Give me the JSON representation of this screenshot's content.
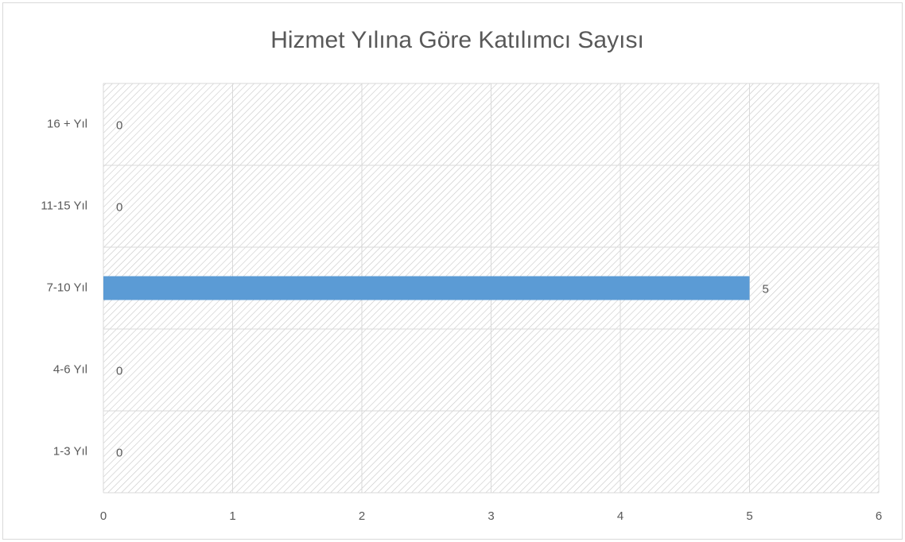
{
  "chart_data": {
    "type": "bar",
    "orientation": "horizontal",
    "title": "Hizmet Yılına Göre Katılımcı Sayısı",
    "categories": [
      "1-3 Yıl",
      "4-6 Yıl",
      "7-10 Yıl",
      "11-15 Yıl",
      "16 + Yıl"
    ],
    "values": [
      0,
      0,
      5,
      0,
      0
    ],
    "color": "#5b9bd5",
    "xlim": [
      0,
      6
    ],
    "xticks": [
      0,
      1,
      2,
      3,
      4,
      5,
      6
    ],
    "grid": true
  }
}
